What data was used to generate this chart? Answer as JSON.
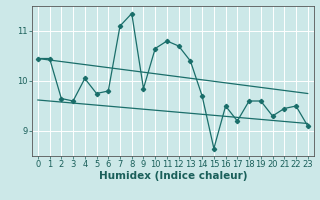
{
  "title": "",
  "xlabel": "Humidex (Indice chaleur)",
  "ylabel": "",
  "background_color": "#cce8e8",
  "line_color": "#1a6e6a",
  "grid_color": "#ffffff",
  "main_series_x": [
    0,
    1,
    2,
    3,
    4,
    5,
    6,
    7,
    8,
    9,
    10,
    11,
    12,
    13,
    14,
    15,
    16,
    17,
    18,
    19,
    20,
    21,
    22,
    23
  ],
  "main_series_y": [
    10.45,
    10.45,
    9.65,
    9.6,
    10.05,
    9.75,
    9.8,
    11.1,
    11.35,
    9.85,
    10.65,
    10.8,
    10.7,
    10.4,
    9.7,
    8.65,
    9.5,
    9.2,
    9.6,
    9.6,
    9.3,
    9.45,
    9.5,
    9.1
  ],
  "trend1_x": [
    0,
    23
  ],
  "trend1_y": [
    10.45,
    9.75
  ],
  "trend2_x": [
    0,
    23
  ],
  "trend2_y": [
    9.62,
    9.15
  ],
  "ylim": [
    8.5,
    11.5
  ],
  "xlim": [
    -0.5,
    23.5
  ],
  "yticks": [
    9,
    10,
    11
  ],
  "xticks": [
    0,
    1,
    2,
    3,
    4,
    5,
    6,
    7,
    8,
    9,
    10,
    11,
    12,
    13,
    14,
    15,
    16,
    17,
    18,
    19,
    20,
    21,
    22,
    23
  ],
  "tick_fontsize": 6,
  "label_fontsize": 7.5
}
